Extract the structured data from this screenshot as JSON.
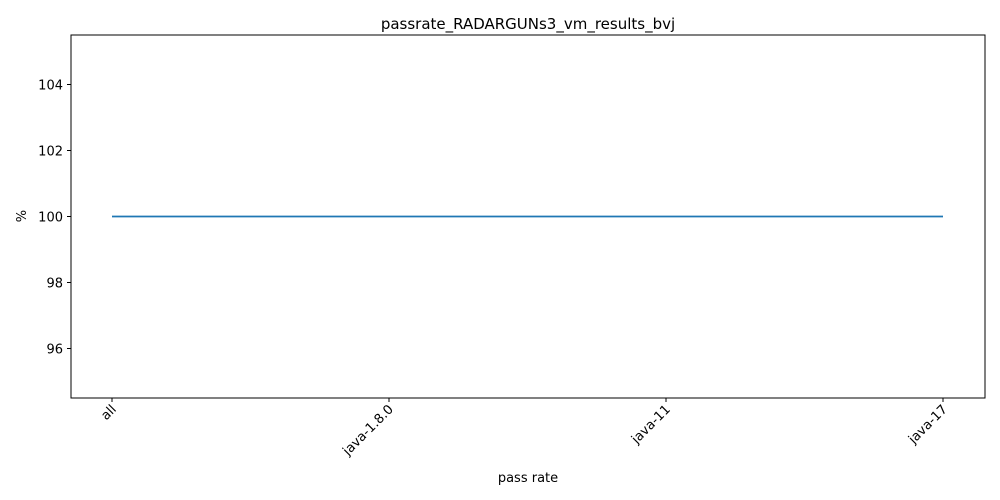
{
  "chart_data": {
    "type": "line",
    "title": "passrate_RADARGUNs3_vm_results_bvj",
    "xlabel": "pass rate",
    "ylabel": "%",
    "categories": [
      "all",
      "java-1.8.0",
      "java-11",
      "java-17"
    ],
    "series": [
      {
        "values": [
          100,
          100,
          100,
          100
        ],
        "color": "#1f77b4"
      }
    ],
    "ylim": [
      94.5,
      105.5
    ],
    "yticks": [
      96,
      98,
      100,
      102,
      104
    ],
    "x_tick_rotation_deg": 45,
    "grid": false,
    "legend": "none"
  }
}
